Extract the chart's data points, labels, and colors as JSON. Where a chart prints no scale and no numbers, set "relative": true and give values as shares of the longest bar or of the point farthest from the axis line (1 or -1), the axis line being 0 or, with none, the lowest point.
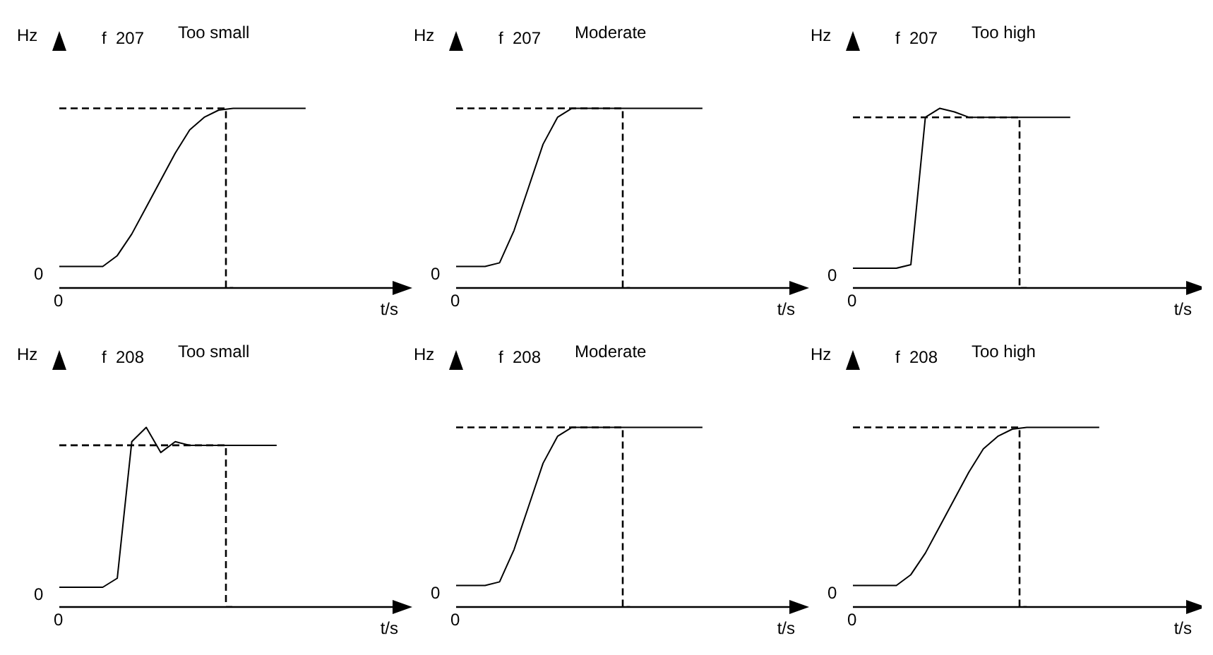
{
  "chart_data": [
    {
      "type": "line",
      "title": "f  207",
      "subtitle": "Too small",
      "xlabel": "t/s",
      "ylabel": "Hz",
      "relative": true,
      "grid": false,
      "annotations": [
        "0",
        "0"
      ],
      "categories": [
        null,
        null,
        null,
        null,
        null,
        null,
        null,
        null,
        null,
        null,
        null,
        null,
        null,
        null,
        null,
        null,
        null,
        null,
        null,
        null,
        null,
        null,
        null,
        null
      ],
      "series": [
        {
          "color": "#000000",
          "line_style": "solid",
          "values": [
            0.12,
            0.12,
            0.12,
            0.12,
            0.18,
            0.3,
            0.45,
            0.6,
            0.75,
            0.88,
            0.95,
            0.99,
            1,
            1,
            1,
            1,
            1,
            1,
            null,
            null,
            null,
            null,
            null,
            null
          ]
        },
        {
          "type": "step",
          "color": "#000000",
          "line_style": "dashed",
          "values": [
            1,
            1,
            1,
            1,
            1,
            1,
            1,
            1,
            1,
            1,
            1,
            1,
            0,
            null,
            null,
            null,
            null,
            null,
            null,
            null,
            null,
            null,
            null,
            null
          ]
        }
      ]
    },
    {
      "type": "line",
      "title": "f  207",
      "subtitle": "Moderate",
      "xlabel": "t/s",
      "ylabel": "Hz",
      "relative": true,
      "grid": false,
      "annotations": [
        "0",
        "0"
      ],
      "categories": [
        null,
        null,
        null,
        null,
        null,
        null,
        null,
        null,
        null,
        null,
        null,
        null,
        null,
        null,
        null,
        null,
        null,
        null,
        null,
        null,
        null,
        null,
        null,
        null
      ],
      "series": [
        {
          "color": "#000000",
          "line_style": "solid",
          "values": [
            0.12,
            0.12,
            0.12,
            0.14,
            0.32,
            0.56,
            0.8,
            0.95,
            1,
            1,
            1,
            1,
            1,
            1,
            1,
            1,
            1,
            1,
            null,
            null,
            null,
            null,
            null,
            null
          ]
        },
        {
          "type": "step",
          "color": "#000000",
          "line_style": "dashed",
          "values": [
            1,
            1,
            1,
            1,
            1,
            1,
            1,
            1,
            1,
            1,
            1,
            1,
            0,
            null,
            null,
            null,
            null,
            null,
            null,
            null,
            null,
            null,
            null,
            null
          ]
        }
      ]
    },
    {
      "type": "line",
      "title": "f  207",
      "subtitle": "Too high",
      "xlabel": "t/s",
      "ylabel": "Hz",
      "relative": true,
      "grid": false,
      "annotations": [
        "0",
        "0"
      ],
      "categories": [
        null,
        null,
        null,
        null,
        null,
        null,
        null,
        null,
        null,
        null,
        null,
        null,
        null,
        null,
        null,
        null,
        null,
        null,
        null,
        null,
        null,
        null,
        null,
        null
      ],
      "series": [
        {
          "color": "#000000",
          "line_style": "solid",
          "values": [
            0.11,
            0.11,
            0.11,
            0.11,
            0.13,
            0.95,
            1,
            0.98,
            0.95,
            0.95,
            0.95,
            0.95,
            0.95,
            0.95,
            0.95,
            0.95,
            null,
            null,
            null,
            null,
            null,
            null,
            null,
            null
          ]
        },
        {
          "type": "step",
          "color": "#000000",
          "line_style": "dashed",
          "values": [
            0.95,
            0.95,
            0.95,
            0.95,
            0.95,
            0.95,
            0.95,
            0.95,
            0.95,
            0.95,
            0.95,
            0.95,
            0,
            null,
            null,
            null,
            null,
            null,
            null,
            null,
            null,
            null,
            null,
            null
          ]
        }
      ]
    },
    {
      "type": "line",
      "title": "f  208",
      "subtitle": "Too small",
      "xlabel": "t/s",
      "ylabel": "Hz",
      "relative": true,
      "grid": false,
      "annotations": [
        "0",
        "0"
      ],
      "categories": [
        null,
        null,
        null,
        null,
        null,
        null,
        null,
        null,
        null,
        null,
        null,
        null,
        null,
        null,
        null,
        null,
        null,
        null,
        null,
        null,
        null,
        null,
        null,
        null
      ],
      "series": [
        {
          "color": "#000000",
          "line_style": "solid",
          "values": [
            0.11,
            0.11,
            0.11,
            0.11,
            0.16,
            0.92,
            1,
            0.86,
            0.92,
            0.9,
            0.9,
            0.9,
            0.9,
            0.9,
            0.9,
            0.9,
            null,
            null,
            null,
            null,
            null,
            null,
            null,
            null
          ]
        },
        {
          "type": "step",
          "color": "#000000",
          "line_style": "dashed",
          "values": [
            0.9,
            0.9,
            0.9,
            0.9,
            0.9,
            0.9,
            0.9,
            0.9,
            0.9,
            0.9,
            0.9,
            0.9,
            0,
            null,
            null,
            null,
            null,
            null,
            null,
            null,
            null,
            null,
            null,
            null
          ]
        }
      ]
    },
    {
      "type": "line",
      "title": "f  208",
      "subtitle": "Moderate",
      "xlabel": "t/s",
      "ylabel": "Hz",
      "relative": true,
      "grid": false,
      "annotations": [
        "0",
        "0"
      ],
      "categories": [
        null,
        null,
        null,
        null,
        null,
        null,
        null,
        null,
        null,
        null,
        null,
        null,
        null,
        null,
        null,
        null,
        null,
        null,
        null,
        null,
        null,
        null,
        null,
        null
      ],
      "series": [
        {
          "color": "#000000",
          "line_style": "solid",
          "values": [
            0.12,
            0.12,
            0.12,
            0.14,
            0.32,
            0.56,
            0.8,
            0.95,
            1,
            1,
            1,
            1,
            1,
            1,
            1,
            1,
            1,
            1,
            null,
            null,
            null,
            null,
            null,
            null
          ]
        },
        {
          "type": "step",
          "color": "#000000",
          "line_style": "dashed",
          "values": [
            1,
            1,
            1,
            1,
            1,
            1,
            1,
            1,
            1,
            1,
            1,
            1,
            0,
            null,
            null,
            null,
            null,
            null,
            null,
            null,
            null,
            null,
            null,
            null
          ]
        }
      ]
    },
    {
      "type": "line",
      "title": "f  208",
      "subtitle": "Too high",
      "xlabel": "t/s",
      "ylabel": "Hz",
      "relative": true,
      "grid": false,
      "annotations": [
        "0",
        "0"
      ],
      "categories": [
        null,
        null,
        null,
        null,
        null,
        null,
        null,
        null,
        null,
        null,
        null,
        null,
        null,
        null,
        null,
        null,
        null,
        null,
        null,
        null,
        null,
        null,
        null,
        null
      ],
      "series": [
        {
          "color": "#000000",
          "line_style": "solid",
          "values": [
            0.12,
            0.12,
            0.12,
            0.12,
            0.18,
            0.3,
            0.45,
            0.6,
            0.75,
            0.88,
            0.95,
            0.99,
            1,
            1,
            1,
            1,
            1,
            1,
            null,
            null,
            null,
            null,
            null,
            null
          ]
        },
        {
          "type": "step",
          "color": "#000000",
          "line_style": "dashed",
          "values": [
            1,
            1,
            1,
            1,
            1,
            1,
            1,
            1,
            1,
            1,
            1,
            1,
            0,
            null,
            null,
            null,
            null,
            null,
            null,
            null,
            null,
            null,
            null,
            null
          ]
        }
      ]
    }
  ]
}
